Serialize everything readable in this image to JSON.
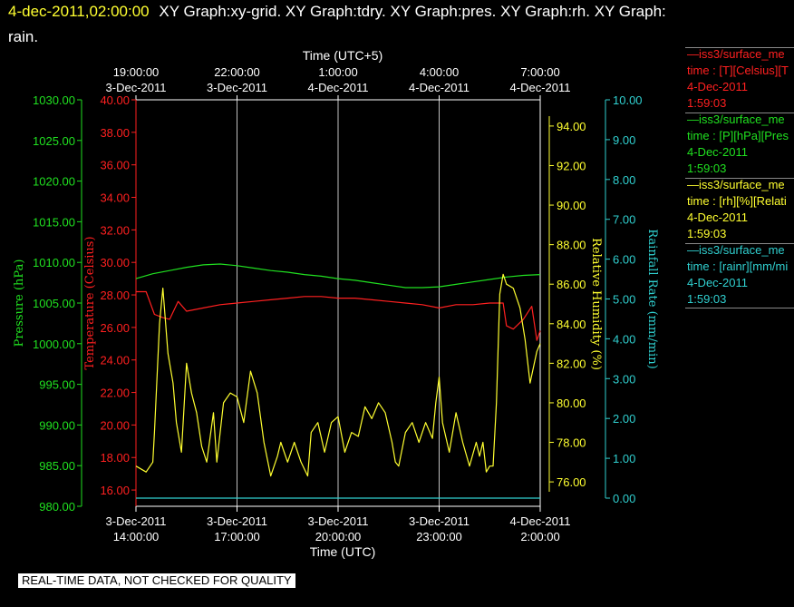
{
  "header": {
    "timestamp": "4-dec-2011,02:00:00",
    "titles_line1": "XY Graph:xy-grid.  XY Graph:tdry.  XY Graph:pres.  XY Graph:rh.  XY Graph:",
    "titles_line2": "rain."
  },
  "notice": "REAL-TIME DATA, NOT CHECKED FOR QUALITY",
  "colors": {
    "temperature": "#ff2020",
    "pressure": "#20e020",
    "humidity": "#ffff30",
    "rainfall": "#30d0d0",
    "frame": "#ffffff",
    "grid": "#ffffff"
  },
  "legend": [
    {
      "series_key": "temperature",
      "title": "iss3/surface_me",
      "var": "time : [T][Celsius][T",
      "date": "4-Dec-2011",
      "time": "1:59:03"
    },
    {
      "series_key": "pressure",
      "title": "iss3/surface_me",
      "var": "time : [P][hPa][Pres",
      "date": "4-Dec-2011",
      "time": "1:59:03"
    },
    {
      "series_key": "humidity",
      "title": "iss3/surface_me",
      "var": "time : [rh][%][Relati",
      "date": "4-Dec-2011",
      "time": "1:59:03"
    },
    {
      "series_key": "rainfall",
      "title": "iss3/surface_me",
      "var": "time : [rainr][mm/mi",
      "date": "4-Dec-2011",
      "time": "1:59:03"
    }
  ],
  "chart_data": {
    "type": "line",
    "grid": true,
    "x_axis_bottom": {
      "label": "Time (UTC)",
      "ticks": [
        {
          "hour": 0,
          "line1": "3-Dec-2011",
          "line2": "14:00:00"
        },
        {
          "hour": 3,
          "line1": "3-Dec-2011",
          "line2": "17:00:00"
        },
        {
          "hour": 6,
          "line1": "3-Dec-2011",
          "line2": "20:00:00"
        },
        {
          "hour": 9,
          "line1": "3-Dec-2011",
          "line2": "23:00:00"
        },
        {
          "hour": 12,
          "line1": "4-Dec-2011",
          "line2": "2:00:00"
        }
      ],
      "range_hours": [
        0,
        12
      ]
    },
    "x_axis_top": {
      "label": "Time (UTC+5)",
      "ticks": [
        {
          "hour": 0,
          "line1": "19:00:00",
          "line2": "3-Dec-2011"
        },
        {
          "hour": 3,
          "line1": "22:00:00",
          "line2": "3-Dec-2011"
        },
        {
          "hour": 6,
          "line1": "1:00:00",
          "line2": "4-Dec-2011"
        },
        {
          "hour": 9,
          "line1": "4:00:00",
          "line2": "4-Dec-2011"
        },
        {
          "hour": 12,
          "line1": "7:00:00",
          "line2": "4-Dec-2011"
        }
      ]
    },
    "y_axes": {
      "pressure": {
        "label": "Pressure (hPa)",
        "range": [
          980,
          1030
        ],
        "ticks": [
          "980.00",
          "985.00",
          "990.00",
          "995.00",
          "1000.00",
          "1005.00",
          "1010.00",
          "1015.00",
          "1020.00",
          "1025.00",
          "1030.00"
        ]
      },
      "temperature": {
        "label": "Temperature (Celsius)",
        "range": [
          15,
          40
        ],
        "ticks": [
          "16.00",
          "18.00",
          "20.00",
          "22.00",
          "24.00",
          "26.00",
          "28.00",
          "30.00",
          "32.00",
          "34.00",
          "36.00",
          "38.00",
          "40.00"
        ]
      },
      "humidity": {
        "label": "Relative Humidity (%)",
        "range": [
          75.5,
          94.5
        ],
        "ticks": [
          "76.00",
          "78.00",
          "80.00",
          "82.00",
          "84.00",
          "86.00",
          "88.00",
          "90.00",
          "92.00",
          "94.00"
        ]
      },
      "rainfall": {
        "label": "Rainfall Rate (mm/min)",
        "range": [
          0,
          10
        ],
        "ticks": [
          "0.00",
          "1.00",
          "2.00",
          "3.00",
          "4.00",
          "5.00",
          "6.00",
          "7.00",
          "8.00",
          "9.00",
          "10.00"
        ]
      }
    },
    "series": [
      {
        "key": "pressure",
        "axis": "pressure",
        "x": [
          0,
          0.5,
          1,
          1.5,
          2,
          2.5,
          3,
          3.5,
          4,
          4.5,
          5,
          5.5,
          6,
          6.5,
          7,
          7.5,
          8,
          8.5,
          9,
          9.5,
          10,
          10.5,
          11,
          11.5,
          12
        ],
        "values": [
          1008.0,
          1008.6,
          1009.0,
          1009.4,
          1009.7,
          1009.8,
          1009.6,
          1009.3,
          1009.0,
          1008.8,
          1008.5,
          1008.3,
          1008.0,
          1007.8,
          1007.5,
          1007.2,
          1006.9,
          1006.9,
          1007.0,
          1007.3,
          1007.6,
          1007.9,
          1008.2,
          1008.4,
          1008.5
        ]
      },
      {
        "key": "temperature",
        "axis": "temperature",
        "x": [
          0,
          0.3,
          0.55,
          0.8,
          1.0,
          1.25,
          1.5,
          2,
          2.5,
          3,
          3.5,
          4,
          4.5,
          5,
          5.5,
          6,
          6.5,
          7,
          7.5,
          8,
          8.5,
          9,
          9.5,
          10,
          10.5,
          10.9,
          11.0,
          11.2,
          11.5,
          11.75,
          11.9,
          12
        ],
        "values": [
          28.2,
          28.2,
          26.8,
          26.6,
          26.5,
          27.6,
          27.0,
          27.2,
          27.4,
          27.5,
          27.6,
          27.7,
          27.8,
          27.9,
          27.9,
          27.8,
          27.8,
          27.7,
          27.6,
          27.5,
          27.4,
          27.2,
          27.4,
          27.4,
          27.5,
          27.5,
          26.1,
          25.9,
          26.5,
          27.3,
          25.2,
          25.8
        ]
      },
      {
        "key": "humidity",
        "axis": "humidity",
        "x": [
          0,
          0.3,
          0.5,
          0.55,
          0.7,
          0.8,
          0.95,
          1.1,
          1.2,
          1.35,
          1.5,
          1.65,
          1.8,
          1.95,
          2.1,
          2.3,
          2.4,
          2.6,
          2.8,
          3.0,
          3.2,
          3.4,
          3.6,
          3.8,
          4.0,
          4.2,
          4.3,
          4.5,
          4.7,
          4.9,
          5.1,
          5.2,
          5.4,
          5.6,
          5.8,
          6.0,
          6.2,
          6.4,
          6.6,
          6.8,
          7.0,
          7.2,
          7.4,
          7.6,
          7.7,
          7.8,
          8.0,
          8.2,
          8.4,
          8.6,
          8.8,
          8.9,
          9.0,
          9.1,
          9.3,
          9.5,
          9.7,
          9.9,
          10.1,
          10.2,
          10.3,
          10.4,
          10.5,
          10.6,
          10.7,
          10.8,
          10.9,
          11.0,
          11.2,
          11.4,
          11.55,
          11.7,
          11.9,
          12
        ],
        "values": [
          76.8,
          76.5,
          77.0,
          78.5,
          84.0,
          85.8,
          82.5,
          81.0,
          79.0,
          77.5,
          82.0,
          80.5,
          79.5,
          77.8,
          77.0,
          79.5,
          77.0,
          80.0,
          80.5,
          80.3,
          79.0,
          81.6,
          80.5,
          78.0,
          76.3,
          77.3,
          78.0,
          77.0,
          78.0,
          77.0,
          76.3,
          78.5,
          79.0,
          77.5,
          79.0,
          79.3,
          77.5,
          78.5,
          78.3,
          79.8,
          79.2,
          80.0,
          79.5,
          78.0,
          77.0,
          76.8,
          78.5,
          79.0,
          78.0,
          79.0,
          78.2,
          80.0,
          81.3,
          79.0,
          77.5,
          79.5,
          78.0,
          76.8,
          78.0,
          77.3,
          78.0,
          76.5,
          76.8,
          76.8,
          80.0,
          85.5,
          86.5,
          86.0,
          85.8,
          84.8,
          83.2,
          81.0,
          82.6,
          83.0
        ]
      },
      {
        "key": "rainfall",
        "axis": "rainfall",
        "x": [
          0,
          12
        ],
        "values": [
          0.0,
          0.0
        ]
      }
    ]
  }
}
